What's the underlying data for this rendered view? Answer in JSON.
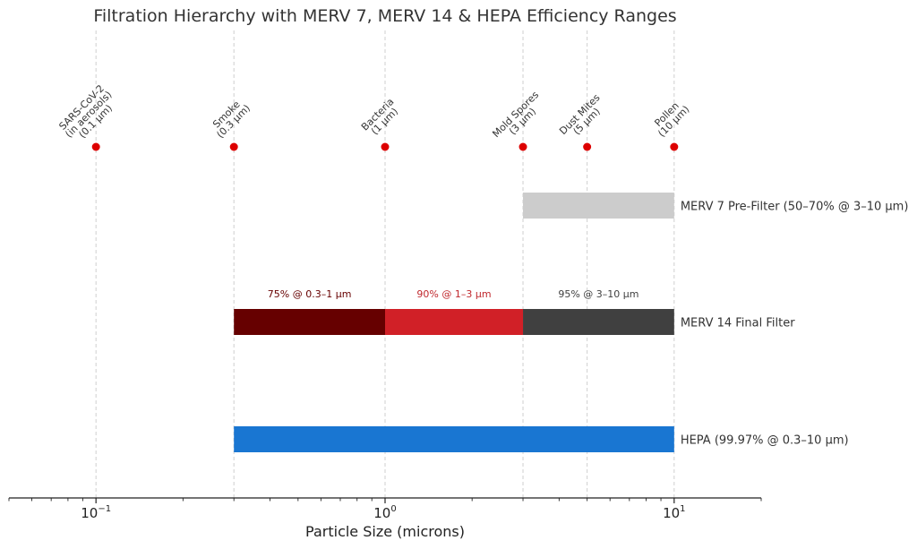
{
  "chart_data": {
    "type": "bar",
    "orientation": "horizontal",
    "title": "Filtration Hierarchy with MERV 7, MERV 14 & HEPA Efficiency Ranges",
    "xlabel": "Particle Size (microns)",
    "ylabel": "",
    "xscale": "log",
    "xlim": [
      0.05,
      20
    ],
    "xticks": [
      {
        "value": 0.1,
        "base": "10",
        "exp": "−1"
      },
      {
        "value": 1,
        "base": "10",
        "exp": "0"
      },
      {
        "value": 10,
        "base": "10",
        "exp": "1"
      }
    ],
    "grid": "vertical dashed at particle sizes",
    "particles": [
      {
        "name": "SARS-CoV-2 (in aerosols) (0.1 µm)",
        "size": 0.1,
        "lines": [
          "SARS-CoV-2",
          "(in aerosols)",
          "(0.1 µm)"
        ]
      },
      {
        "name": "Smoke (0.3 µm)",
        "size": 0.3,
        "lines": [
          "Smoke",
          "(0.3 µm)"
        ]
      },
      {
        "name": "Bacteria (1 µm)",
        "size": 1,
        "lines": [
          "Bacteria",
          "(1 µm)"
        ]
      },
      {
        "name": "Mold Spores (3 µm)",
        "size": 3,
        "lines": [
          "Mold Spores",
          "(3 µm)"
        ]
      },
      {
        "name": "Dust Mites (5 µm)",
        "size": 5,
        "lines": [
          "Dust Mites",
          "(5 µm)"
        ]
      },
      {
        "name": "Pollen (10 µm)",
        "size": 10,
        "lines": [
          "Pollen",
          "(10 µm)"
        ]
      }
    ],
    "series": [
      {
        "name": "MERV 7 Pre-Filter",
        "label": "MERV 7 Pre-Filter (50–70% @ 3–10 µm)",
        "segments": [
          {
            "start": 3,
            "end": 10,
            "color": "#cccccc",
            "label": ""
          }
        ]
      },
      {
        "name": "MERV 14 Final Filter",
        "label": "MERV 14 Final Filter",
        "segments": [
          {
            "start": 0.3,
            "end": 1,
            "color": "#660000",
            "label": "75% @ 0.3–1 µm",
            "label_color": "#660000"
          },
          {
            "start": 1,
            "end": 3,
            "color": "#d12027",
            "label": "90% @ 1–3 µm",
            "label_color": "#c0282d"
          },
          {
            "start": 3,
            "end": 10,
            "color": "#404040",
            "label": "95% @ 3–10 µm",
            "label_color": "#404040"
          }
        ]
      },
      {
        "name": "HEPA",
        "label": "HEPA (99.97% @ 0.3–10 µm)",
        "segments": [
          {
            "start": 0.3,
            "end": 10,
            "color": "#1976d2",
            "label": ""
          }
        ]
      }
    ],
    "marker_color": "#dd0000"
  }
}
